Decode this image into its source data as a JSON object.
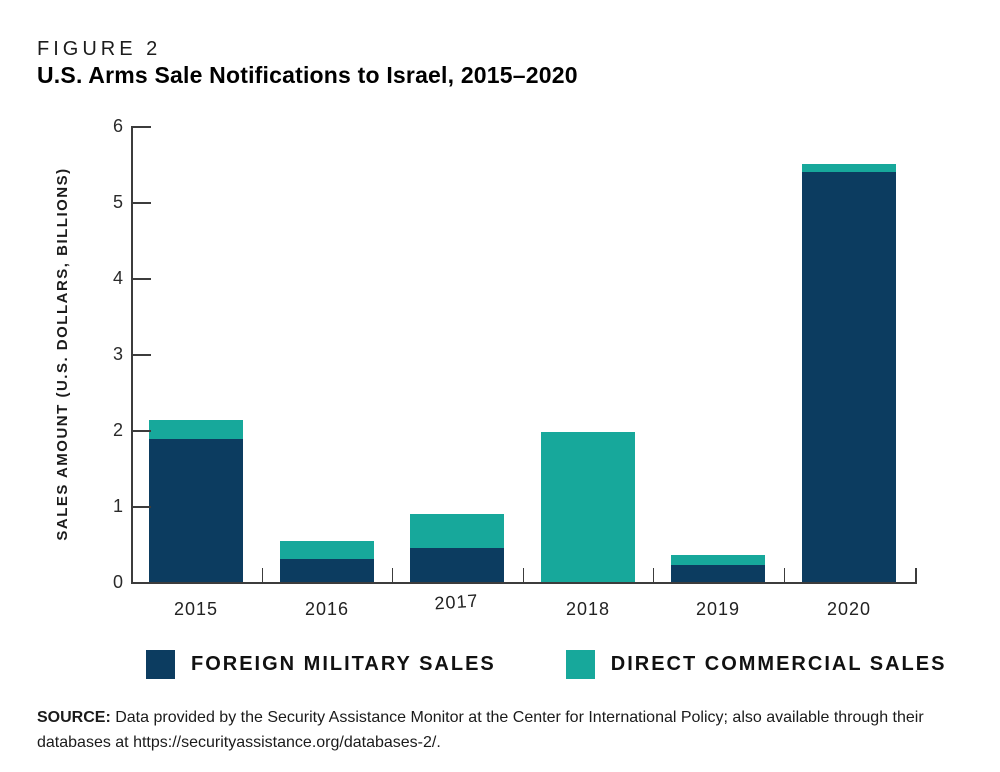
{
  "header": {
    "figure_label": "FIGURE 2",
    "title": "U.S. Arms Sale Notifications to Israel, 2015–2020"
  },
  "chart_data": {
    "type": "bar",
    "stacked": true,
    "title": "U.S. Arms Sale Notifications to Israel, 2015–2020",
    "xlabel": "",
    "ylabel": "SALES AMOUNT (U.S. DOLLARS, BILLIONS)",
    "ylim": [
      0,
      6
    ],
    "yticks": [
      0,
      1,
      2,
      3,
      4,
      5,
      6
    ],
    "grid": false,
    "legend_position": "bottom",
    "categories": [
      "2015",
      "2016",
      "2017",
      "2018",
      "2019",
      "2020"
    ],
    "series": [
      {
        "name": "FOREIGN MILITARY SALES",
        "color": "#0c3c60",
        "values": [
          1.88,
          0.3,
          0.45,
          0,
          0.23,
          5.4
        ]
      },
      {
        "name": "DIRECT COMMERCIAL SALES",
        "color": "#17a89b",
        "values": [
          0.25,
          0.24,
          0.45,
          1.97,
          0.13,
          0.11
        ]
      }
    ]
  },
  "legend": {
    "items": [
      {
        "label": "FOREIGN MILITARY SALES",
        "color": "#0c3c60"
      },
      {
        "label": "DIRECT COMMERCIAL SALES",
        "color": "#17a89b"
      }
    ]
  },
  "source": {
    "bold": "SOURCE:",
    "text": " Data provided by the Security Assistance Monitor at the Center for International Policy; also available through their databases at https://securityassistance.org/databases-2/."
  },
  "colors": {
    "fms_navy": "#0c3c60",
    "dcs_teal": "#17a89b",
    "axis": "#3c3c3c",
    "text": "#1b1b1b"
  }
}
